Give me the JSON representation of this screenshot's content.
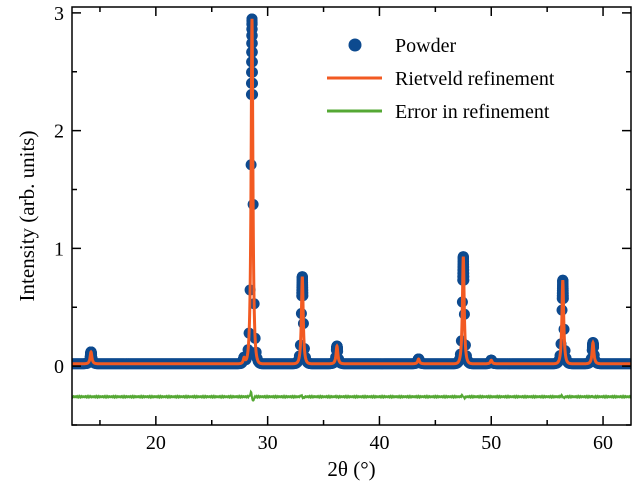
{
  "chart_data": {
    "type": "line",
    "title": "",
    "xlabel": "2θ (°)",
    "ylabel": "Intensity (arb. units)",
    "xlim": [
      12.5,
      62.5
    ],
    "ylim": [
      -0.5,
      3.05
    ],
    "xticks": [
      20,
      30,
      40,
      50,
      60
    ],
    "yticks": [
      0,
      1,
      2,
      3
    ],
    "xtick_labels": [
      "20",
      "30",
      "40",
      "50",
      "60"
    ],
    "ytick_labels": [
      "0",
      "1",
      "2",
      "3"
    ],
    "legend_position": "top-right",
    "grid": false,
    "baseline": 0.02,
    "error_offset": -0.26,
    "peaks": [
      {
        "x": 14.2,
        "height": 0.1
      },
      {
        "x": 27.9,
        "height": 0.05
      },
      {
        "x": 28.6,
        "height": 2.93
      },
      {
        "x": 33.1,
        "height": 0.74
      },
      {
        "x": 36.2,
        "height": 0.15
      },
      {
        "x": 43.5,
        "height": 0.04
      },
      {
        "x": 47.5,
        "height": 0.91
      },
      {
        "x": 50.0,
        "height": 0.03
      },
      {
        "x": 56.4,
        "height": 0.71
      },
      {
        "x": 59.1,
        "height": 0.18
      }
    ],
    "series": [
      {
        "name": "Powder",
        "kind": "scatter",
        "color": "#0d4a8f"
      },
      {
        "name": "Rietveld refinement",
        "kind": "line",
        "color": "#f25a22"
      },
      {
        "name": "Error in refinement",
        "kind": "line",
        "color": "#55a834"
      }
    ]
  }
}
